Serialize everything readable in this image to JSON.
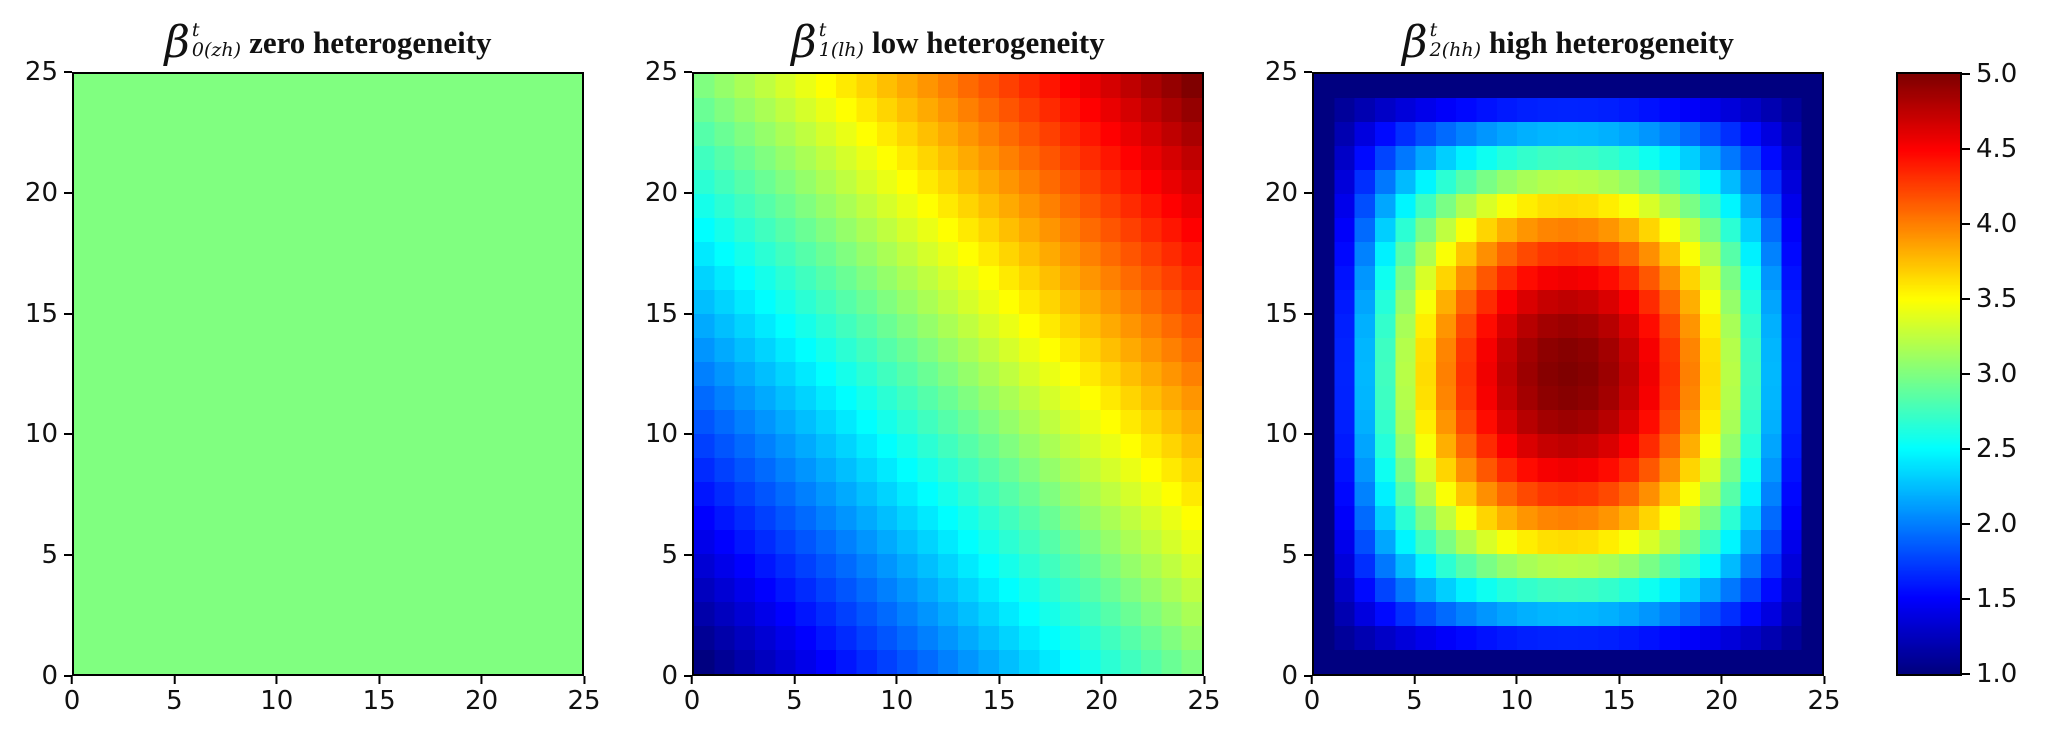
{
  "figure": {
    "background": "#ffffff",
    "colormap": "jet",
    "value_range": [
      1.0,
      5.0
    ]
  },
  "chart_data": [
    {
      "type": "heatmap",
      "title": {
        "symbol": "β",
        "sup": "t",
        "sub": "0(zh)",
        "label": "zero heterogeneity"
      },
      "grid_size": 25,
      "value_range": [
        1.0,
        5.0
      ],
      "x": {
        "min": 0,
        "max": 25,
        "ticks": [
          0,
          5,
          10,
          15,
          20,
          25
        ]
      },
      "y": {
        "min": 0,
        "max": 25,
        "ticks": [
          0,
          5,
          10,
          15,
          20,
          25
        ]
      },
      "colormap": "jet",
      "value_pattern": {
        "kind": "constant",
        "value": 3.0,
        "formula": "beta0(u,v) = 3"
      }
    },
    {
      "type": "heatmap",
      "title": {
        "symbol": "β",
        "sup": "t",
        "sub": "1(lh)",
        "label": "low heterogeneity"
      },
      "grid_size": 25,
      "value_range": [
        1.0,
        5.0
      ],
      "x": {
        "min": 0,
        "max": 25,
        "ticks": [
          0,
          5,
          10,
          15,
          20,
          25
        ]
      },
      "y": {
        "min": 0,
        "max": 25,
        "ticks": [
          0,
          5,
          10,
          15,
          20,
          25
        ]
      },
      "colormap": "jet",
      "value_pattern": {
        "kind": "linear_sum",
        "base": 1,
        "divisor": 12,
        "formula": "beta1(u,v) = 1 + (u+v)/12",
        "low_corner": "bottom-left",
        "low_corner_value": 1.0,
        "high_corner": "top-right",
        "high_corner_value": 5.0
      }
    },
    {
      "type": "heatmap",
      "title": {
        "symbol": "β",
        "sup": "t",
        "sub": "2(hh)",
        "label": "high heterogeneity"
      },
      "grid_size": 25,
      "value_range": [
        1.0,
        5.0
      ],
      "x": {
        "min": 0,
        "max": 25,
        "ticks": [
          0,
          5,
          10,
          15,
          20,
          25
        ]
      },
      "y": {
        "min": 0,
        "max": 25,
        "ticks": [
          0,
          5,
          10,
          15,
          20,
          25
        ]
      },
      "colormap": "jet",
      "value_pattern": {
        "kind": "quadratic_peak",
        "base": 1,
        "scale": 324,
        "formula": "beta2(u,v) = 1 + [36-(6-u/2)^2][36-(6-v/2)^2]/324",
        "edge_value": 1.0,
        "center_value": 5.0,
        "center": [
          12.5,
          12.5
        ]
      }
    }
  ],
  "colorbar": {
    "min": 1.0,
    "max": 5.0,
    "colormap": "jet",
    "ticks": [
      "5.0",
      "4.5",
      "4.0",
      "3.5",
      "3.0",
      "2.5",
      "2.0",
      "1.5",
      "1.0"
    ]
  }
}
